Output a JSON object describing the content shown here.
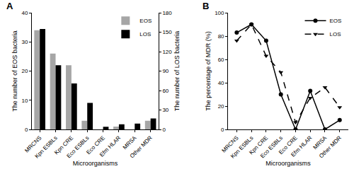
{
  "chart_data": [
    {
      "type": "bar",
      "title": "A",
      "x_label": "Microorganisms",
      "y_label": "The number of EOS bacteria",
      "y2_label": "The number of LOS bacteria",
      "categories": [
        "MRCNS",
        "Kpn ESBLs",
        "Kpn CRE",
        "Eco ESBLs",
        "Eco CRE",
        "Efm HLAR",
        "MRSA",
        "Other MDR"
      ],
      "series": [
        {
          "name": "EOS",
          "color": "#a6a6a6",
          "values": [
            34,
            26,
            22,
            3,
            0,
            1,
            0,
            3
          ]
        },
        {
          "name": "LOS",
          "color": "#000000",
          "axis": "y2",
          "values": [
            155,
            99,
            71,
            41,
            4,
            8,
            9,
            17
          ]
        }
      ],
      "ylim": [
        0,
        40
      ],
      "yticks": [
        0,
        10,
        20,
        30,
        40
      ],
      "y2lim": [
        0,
        180
      ],
      "y2ticks": [
        0,
        30,
        60,
        90,
        120,
        150,
        180
      ],
      "legend": "upper right",
      "grid": false
    },
    {
      "type": "line",
      "title": "B",
      "x_label": "Microorganisms",
      "y_label": "The percentage of MDR (%)",
      "categories": [
        "MRCNS",
        "Kpn ESBLs",
        "Kpn CRE",
        "Eco ESBLs",
        "Eco CRE",
        "Efm HLAR",
        "MRSA",
        "Other MDR"
      ],
      "series": [
        {
          "name": "EOS",
          "color": "#000000",
          "marker": "circle",
          "line_style": "solid",
          "values": [
            83,
            90,
            76,
            30,
            0,
            33,
            0,
            8
          ]
        },
        {
          "name": "LOS",
          "color": "#000000",
          "marker": "triangle-down",
          "line_style": "dash",
          "values": [
            76,
            90,
            63,
            49,
            6,
            27,
            36,
            19
          ]
        }
      ],
      "ylim": [
        0,
        100
      ],
      "yticks": [
        0,
        20,
        40,
        60,
        80,
        100
      ],
      "legend": "upper right",
      "grid": false
    }
  ]
}
